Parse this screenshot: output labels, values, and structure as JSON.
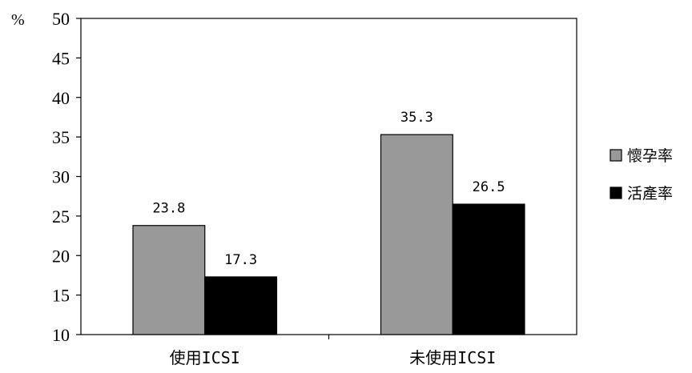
{
  "chart_data": {
    "type": "bar",
    "title": "",
    "xlabel": "",
    "ylabel": "",
    "y_unit": "%",
    "categories": [
      "使用ICSI",
      "未使用ICSI"
    ],
    "series": [
      {
        "name": "懷孕率",
        "values": [
          23.8,
          35.3
        ],
        "color": "#999999"
      },
      {
        "name": "活產率",
        "values": [
          17.3,
          26.5
        ],
        "color": "#000000"
      }
    ],
    "ylim": [
      10,
      50
    ],
    "yticks": [
      10,
      15,
      20,
      25,
      30,
      35,
      40,
      45,
      50
    ],
    "value_labels": [
      "23.8",
      "17.3",
      "35.3",
      "26.5"
    ],
    "grid": false,
    "legend_position": "right"
  }
}
